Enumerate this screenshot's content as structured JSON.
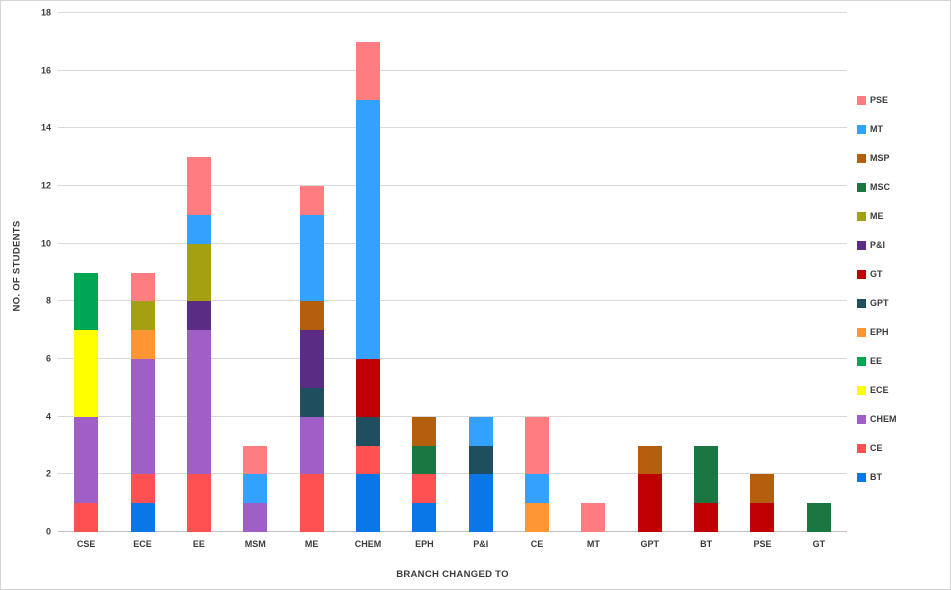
{
  "chart_data": {
    "type": "bar",
    "stacked": true,
    "title": "",
    "xlabel": "BRANCH CHANGED TO",
    "ylabel": "NO. OF STUDENTS",
    "ylim": [
      0,
      18
    ],
    "yticks": [
      0,
      2,
      4,
      6,
      8,
      10,
      12,
      14,
      16,
      18
    ],
    "grid": true,
    "grid_color": "#d9d9d9",
    "axis_text_color": "#3b3b3b",
    "legend_position": "right",
    "categories": [
      "CSE",
      "ECE",
      "EE",
      "MSM",
      "ME",
      "CHEM",
      "EPH",
      "P&I",
      "CE",
      "MT",
      "GPT",
      "BT",
      "PSE",
      "GT"
    ],
    "series": [
      {
        "name": "BT",
        "color": "#0a77e8",
        "values": [
          0,
          1,
          0,
          0,
          0,
          2,
          1,
          2,
          0,
          0,
          0,
          0,
          0,
          0
        ]
      },
      {
        "name": "CE",
        "color": "#ff5052",
        "values": [
          1,
          1,
          2,
          0,
          2,
          1,
          1,
          0,
          0,
          0,
          0,
          0,
          0,
          0
        ]
      },
      {
        "name": "CHEM",
        "color": "#a05ec7",
        "values": [
          3,
          4,
          5,
          1,
          2,
          0,
          0,
          0,
          0,
          0,
          0,
          0,
          0,
          0
        ]
      },
      {
        "name": "ECE",
        "color": "#ffff00",
        "values": [
          3,
          0,
          0,
          0,
          0,
          0,
          0,
          0,
          0,
          0,
          0,
          0,
          0,
          0
        ]
      },
      {
        "name": "EE",
        "color": "#00a651",
        "values": [
          2,
          0,
          0,
          0,
          0,
          0,
          0,
          0,
          0,
          0,
          0,
          0,
          0,
          0
        ]
      },
      {
        "name": "EPH",
        "color": "#ff9533",
        "values": [
          0,
          1,
          0,
          0,
          0,
          0,
          0,
          0,
          1,
          0,
          0,
          0,
          0,
          0
        ]
      },
      {
        "name": "GPT",
        "color": "#1f4e5f",
        "values": [
          0,
          0,
          0,
          0,
          1,
          1,
          0,
          1,
          0,
          0,
          0,
          0,
          0,
          0
        ]
      },
      {
        "name": "GT",
        "color": "#c00000",
        "values": [
          0,
          0,
          0,
          0,
          0,
          2,
          0,
          0,
          0,
          0,
          2,
          1,
          1,
          0
        ]
      },
      {
        "name": "P&I",
        "color": "#5b2c83",
        "values": [
          0,
          0,
          1,
          0,
          2,
          0,
          0,
          0,
          0,
          0,
          0,
          0,
          0,
          0
        ]
      },
      {
        "name": "ME",
        "color": "#a3a012",
        "values": [
          0,
          1,
          2,
          0,
          0,
          0,
          0,
          0,
          0,
          0,
          0,
          0,
          0,
          0
        ]
      },
      {
        "name": "MSC",
        "color": "#1b7742",
        "values": [
          0,
          0,
          0,
          0,
          0,
          0,
          1,
          0,
          0,
          0,
          0,
          2,
          0,
          1
        ]
      },
      {
        "name": "MSP",
        "color": "#b45f0d",
        "values": [
          0,
          0,
          0,
          0,
          1,
          0,
          1,
          0,
          0,
          0,
          1,
          0,
          1,
          0
        ]
      },
      {
        "name": "MT",
        "color": "#33a1ff",
        "values": [
          0,
          0,
          1,
          1,
          3,
          9,
          0,
          1,
          1,
          0,
          0,
          0,
          0,
          0
        ]
      },
      {
        "name": "PSE",
        "color": "#ff7c80",
        "values": [
          0,
          1,
          2,
          1,
          1,
          2,
          0,
          0,
          2,
          1,
          0,
          0,
          0,
          0
        ]
      }
    ]
  }
}
